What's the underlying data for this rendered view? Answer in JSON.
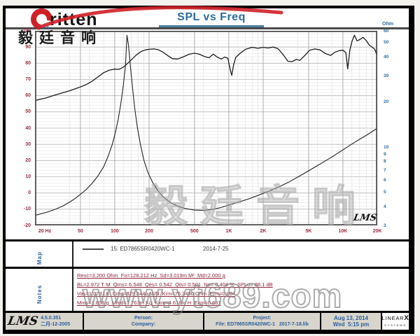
{
  "logo": {
    "brand": "ritten",
    "cjk": "毅廷音响"
  },
  "title": "SPL vs Freq",
  "watermarks": {
    "center_cjk": "毅廷音响",
    "url": "www.yt689.com"
  },
  "chart_data": {
    "type": "line",
    "title": "SPL vs Freq",
    "grid": "on",
    "inner_logo": "LMS",
    "x_axis": {
      "label": "Hz",
      "scale": "log",
      "min": 20,
      "max": 20000,
      "ticks": [
        "20 Hz",
        "50",
        "100",
        "200",
        "500",
        "1K",
        "2K",
        "5K",
        "10K",
        "20K"
      ],
      "tick_values": [
        20,
        50,
        100,
        200,
        500,
        1000,
        2000,
        5000,
        10000,
        20000
      ]
    },
    "y_left": {
      "label": "dBSPL",
      "scale": "linear",
      "min": -20,
      "max": 100,
      "ticks": [
        100,
        90,
        80,
        70,
        60,
        50,
        40,
        30,
        20,
        10,
        0,
        -10,
        -20
      ]
    },
    "y_right": {
      "label": "Ohm",
      "scale": "log",
      "min": 3,
      "max": 60,
      "ticks": [
        60,
        50,
        40,
        30,
        20,
        10,
        9,
        8,
        7,
        6,
        5,
        4,
        3
      ]
    },
    "series": [
      {
        "name": "SPL (dB)",
        "axis": "left",
        "color": "#1c1c1c",
        "width": 1.3,
        "points": [
          [
            20,
            57
          ],
          [
            25,
            58.6
          ],
          [
            30,
            60.4
          ],
          [
            35,
            61.8
          ],
          [
            40,
            63
          ],
          [
            45,
            64.2
          ],
          [
            50,
            65.4
          ],
          [
            56,
            66.8
          ],
          [
            63,
            68.8
          ],
          [
            71,
            71.5
          ],
          [
            80,
            74.2
          ],
          [
            90,
            75.8
          ],
          [
            100,
            76.4
          ],
          [
            108,
            76.2
          ],
          [
            115,
            77
          ],
          [
            122,
            78.2
          ],
          [
            130,
            80
          ],
          [
            142,
            82.6
          ],
          [
            155,
            85.2
          ],
          [
            170,
            87.2
          ],
          [
            185,
            88.2
          ],
          [
            200,
            88.6
          ],
          [
            220,
            88.8
          ],
          [
            240,
            88.4
          ],
          [
            265,
            86.8
          ],
          [
            290,
            84.8
          ],
          [
            320,
            82.8
          ],
          [
            355,
            82.6
          ],
          [
            400,
            84
          ],
          [
            450,
            85.6
          ],
          [
            500,
            86.2
          ],
          [
            550,
            85.6
          ],
          [
            610,
            84.2
          ],
          [
            670,
            83.4
          ],
          [
            730,
            85.6
          ],
          [
            800,
            83.6
          ],
          [
            860,
            82.6
          ],
          [
            920,
            83.8
          ],
          [
            980,
            83
          ],
          [
            1030,
            76
          ],
          [
            1060,
            72.5
          ],
          [
            1100,
            79
          ],
          [
            1150,
            83.6
          ],
          [
            1250,
            86
          ],
          [
            1400,
            88.6
          ],
          [
            1600,
            89.8
          ],
          [
            1800,
            89.2
          ],
          [
            2000,
            89.8
          ],
          [
            2200,
            89.4
          ],
          [
            2450,
            90
          ],
          [
            2700,
            89
          ],
          [
            3000,
            85.2
          ],
          [
            3300,
            81.2
          ],
          [
            3600,
            81
          ],
          [
            3900,
            82.4
          ],
          [
            4200,
            81.8
          ],
          [
            4600,
            84.6
          ],
          [
            5100,
            88
          ],
          [
            5700,
            88.8
          ],
          [
            6300,
            88.2
          ],
          [
            7000,
            86
          ],
          [
            7800,
            84.8
          ],
          [
            8500,
            86.8
          ],
          [
            9300,
            87.8
          ],
          [
            10000,
            88
          ],
          [
            10600,
            86.5
          ],
          [
            11000,
            76.5
          ],
          [
            11500,
            88
          ],
          [
            12000,
            93.5
          ],
          [
            12600,
            97.3
          ],
          [
            13300,
            93.8
          ],
          [
            14200,
            94.8
          ],
          [
            15000,
            96
          ],
          [
            16000,
            94
          ],
          [
            17000,
            91.2
          ],
          [
            18000,
            90
          ],
          [
            19000,
            88.6
          ],
          [
            19600,
            86
          ],
          [
            20000,
            83
          ]
        ]
      },
      {
        "name": "Impedance (Ohm)",
        "axis": "right",
        "color": "#222222",
        "width": 1.1,
        "points": [
          [
            20,
            3.5
          ],
          [
            25,
            3.66
          ],
          [
            30,
            3.84
          ],
          [
            35,
            4.04
          ],
          [
            40,
            4.28
          ],
          [
            45,
            4.54
          ],
          [
            50,
            4.84
          ],
          [
            56,
            5.2
          ],
          [
            63,
            5.7
          ],
          [
            71,
            6.4
          ],
          [
            80,
            7.4
          ],
          [
            88,
            8.8
          ],
          [
            95,
            10.4
          ],
          [
            101,
            12.4
          ],
          [
            107,
            15.2
          ],
          [
            113,
            19.5
          ],
          [
            119,
            26
          ],
          [
            124,
            35
          ],
          [
            128,
            56
          ],
          [
            132,
            48
          ],
          [
            137,
            35
          ],
          [
            143,
            25
          ],
          [
            150,
            18
          ],
          [
            158,
            13.5
          ],
          [
            168,
            10.4
          ],
          [
            180,
            8.2
          ],
          [
            195,
            6.8
          ],
          [
            215,
            5.8
          ],
          [
            240,
            5.1
          ],
          [
            270,
            4.6
          ],
          [
            310,
            4.25
          ],
          [
            360,
            4.02
          ],
          [
            420,
            3.88
          ],
          [
            500,
            3.8
          ],
          [
            600,
            3.78
          ],
          [
            720,
            3.84
          ],
          [
            850,
            3.95
          ],
          [
            1000,
            4.1
          ],
          [
            1250,
            4.32
          ],
          [
            1500,
            4.52
          ],
          [
            1800,
            4.76
          ],
          [
            2200,
            5.05
          ],
          [
            2700,
            5.4
          ],
          [
            3300,
            5.8
          ],
          [
            4000,
            6.3
          ],
          [
            5000,
            6.95
          ],
          [
            6000,
            7.55
          ],
          [
            7200,
            8.2
          ],
          [
            8500,
            8.85
          ],
          [
            10000,
            9.6
          ],
          [
            12000,
            10.5
          ],
          [
            14000,
            11.3
          ],
          [
            16000,
            12
          ],
          [
            18000,
            12.7
          ],
          [
            20000,
            13.4
          ]
        ]
      }
    ]
  },
  "map": {
    "label": "Map",
    "legend": "15: ED7865SR0420WC-1",
    "date": "2014-7-25"
  },
  "notes": {
    "label": "Notes",
    "lines": [
      "Revc=3.200 Ohm  Fo=128.212 Hz  Sd=3.019m M²  Md=2.000 g",
      "BL=2.972 T·M  Qms= 6.548  Qes= 0.542  Qts= 0.501  No= 0.404 %  SPLo= 88.1 dB",
      "Vas=1.073 Ltr  Cms=829.344u M/N  Krm=75.349u Ohm  Erm=0.984",
      "Mms=1.858 g  Mmd=1.763m Kg  Kxm=4.618m H  Exm=0.631"
    ]
  },
  "footer": {
    "lms": "LMS",
    "version": "4.5.0.351",
    "version_date": "二月-12-2005",
    "person_label": "Person:",
    "company_label": "Company:",
    "project_label": "Project:",
    "file_label": "File: ED7865SR0420WC-1",
    "lib_file": "2017-7-18.lib",
    "date": "Aug 13, 2014",
    "time": "Wed  5:15 pm",
    "brand": {
      "linear": "LINEAR",
      "x": "X",
      "systems": "SYSTEMS"
    }
  }
}
